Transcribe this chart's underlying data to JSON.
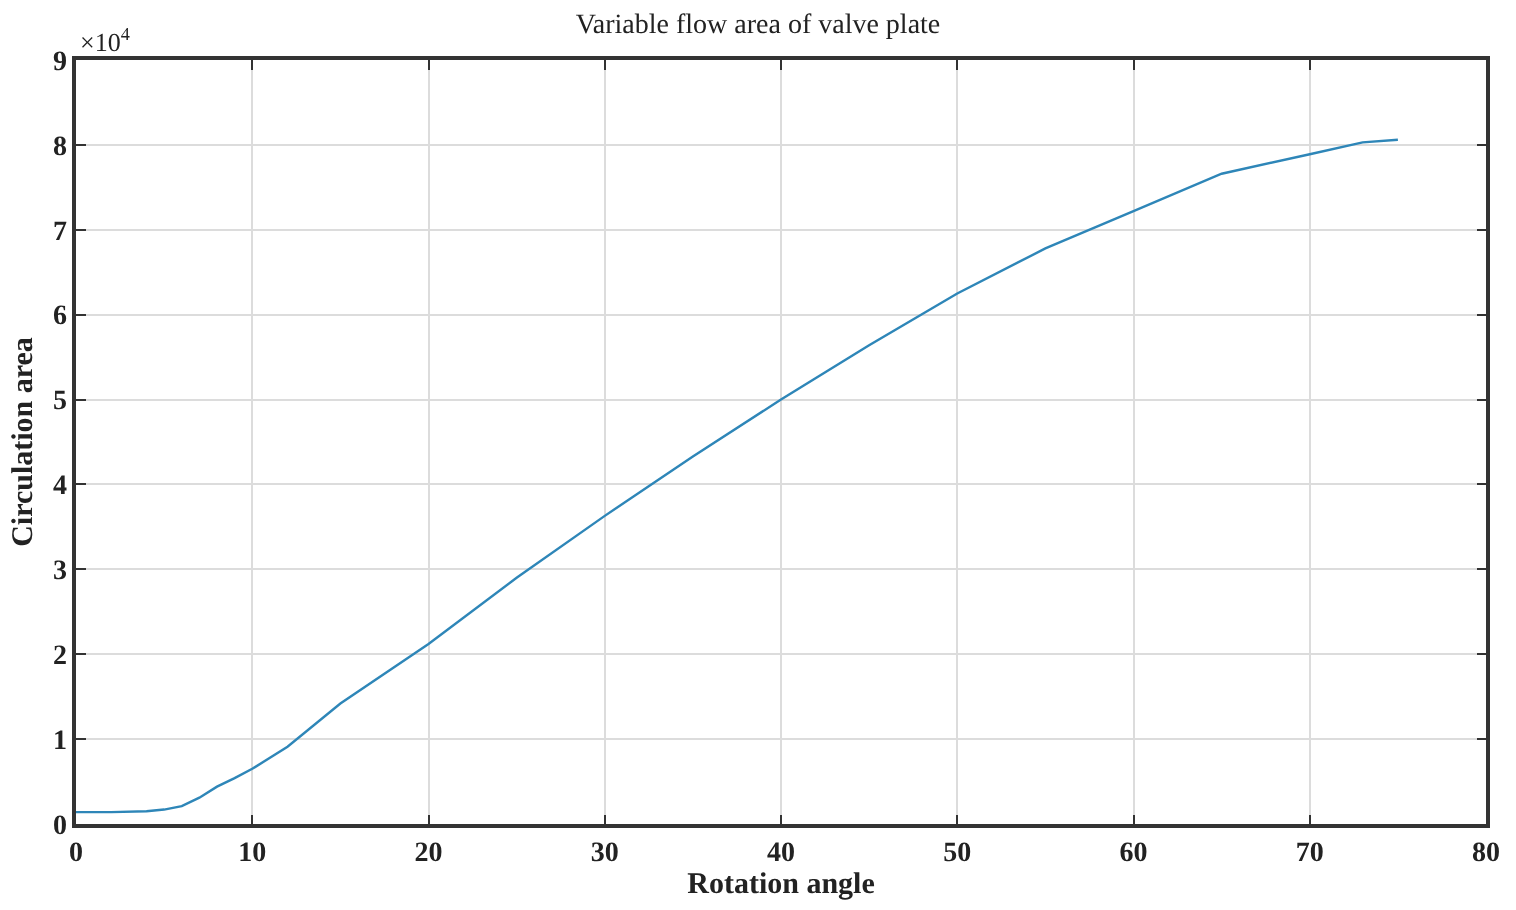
{
  "chart_data": {
    "type": "line",
    "title": "Variable flow area of valve plate",
    "xlabel": "Rotation angle",
    "ylabel": "Circulation area",
    "annotations": [
      "×10$^{4}$"
    ],
    "x": [
      0,
      2,
      4,
      5,
      6,
      7,
      8,
      9,
      10,
      12,
      15,
      20,
      25,
      30,
      35,
      40,
      45,
      50,
      55,
      60,
      65,
      70,
      73,
      75
    ],
    "series": [
      {
        "color": "#2e86b8",
        "values": [
          0.14,
          0.14,
          0.15,
          0.17,
          0.21,
          0.31,
          0.44,
          0.54,
          0.65,
          0.91,
          1.42,
          2.12,
          2.9,
          3.63,
          4.33,
          5.0,
          5.64,
          6.25,
          6.78,
          7.22,
          7.66,
          7.89,
          8.03,
          8.06
        ]
      }
    ],
    "xlim": [
      0,
      80
    ],
    "xticks": [
      0,
      10,
      20,
      30,
      40,
      50,
      60,
      70,
      80
    ],
    "ylim": [
      0,
      9
    ],
    "yticks": [
      0,
      1,
      2,
      3,
      4,
      5,
      6,
      7,
      8,
      9
    ],
    "grid": true,
    "legend": false,
    "marker": "none",
    "line_style": "solid"
  }
}
